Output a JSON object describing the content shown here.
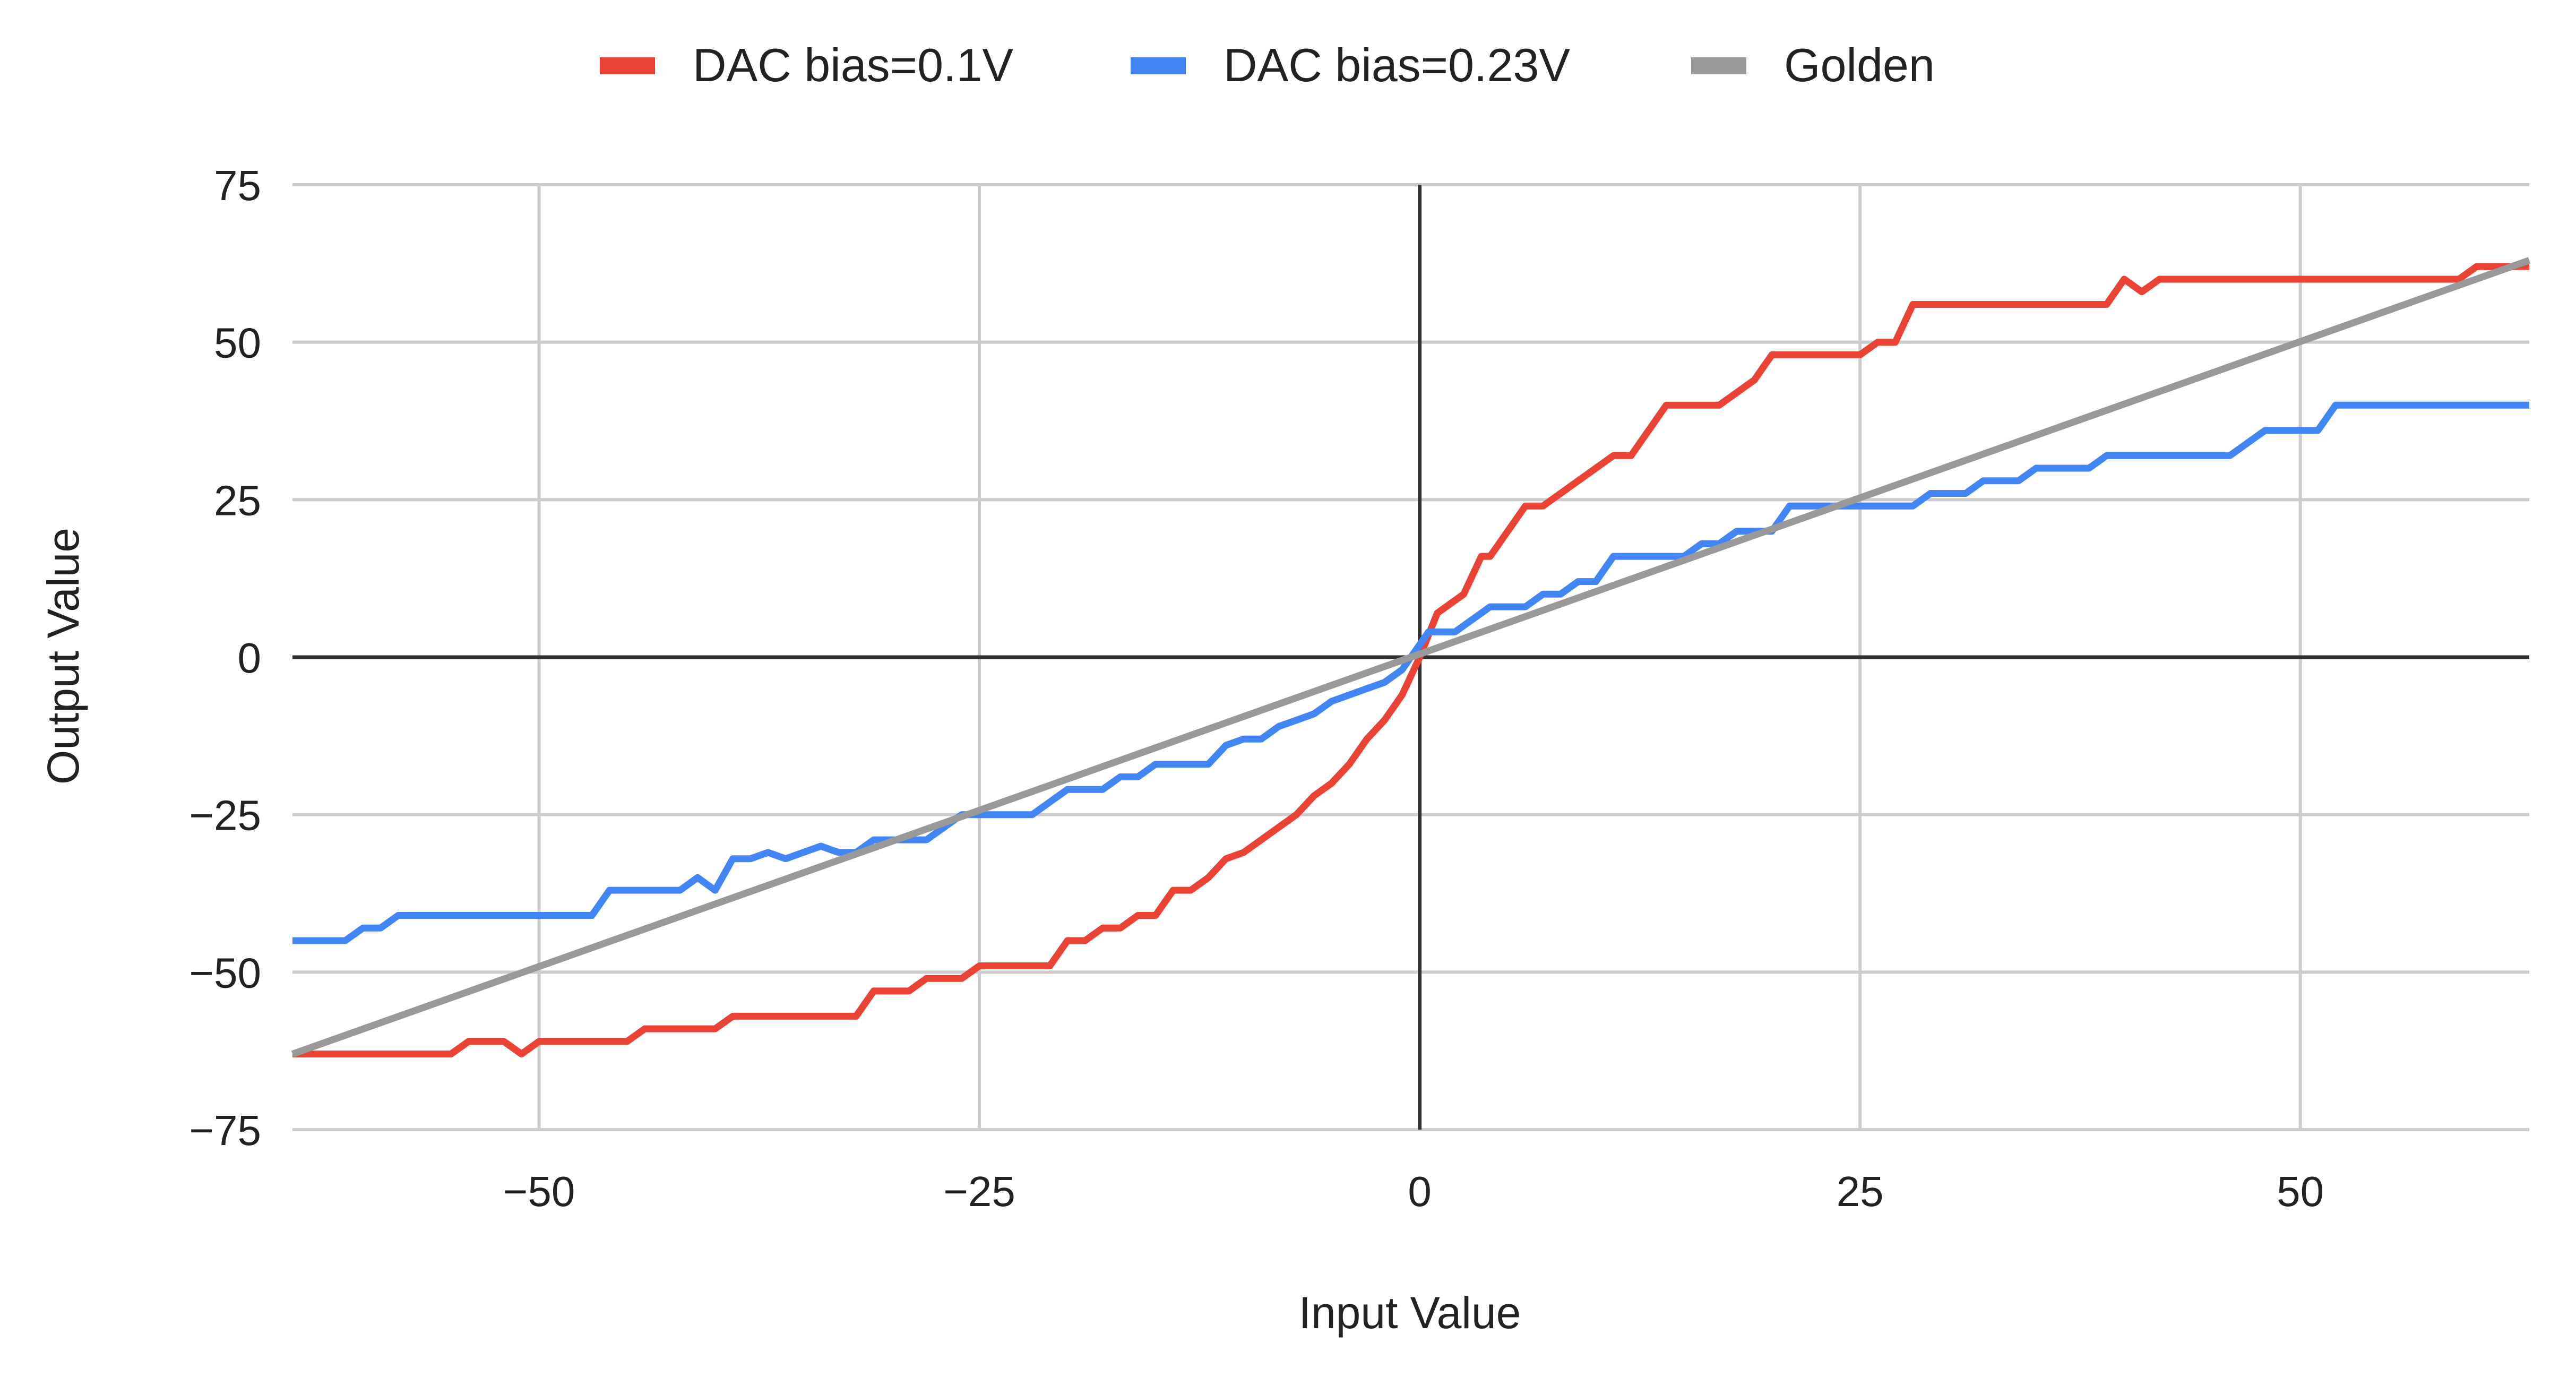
{
  "chart_data": {
    "type": "line",
    "title": "",
    "xlabel": "Input Value",
    "ylabel": "Output Value",
    "xlim": [
      -64,
      63
    ],
    "ylim": [
      -75,
      75
    ],
    "xticks": [
      -50,
      -25,
      0,
      25,
      50
    ],
    "yticks": [
      -75,
      -50,
      -25,
      0,
      25,
      50,
      75
    ],
    "xtick_labels": [
      "−50",
      "−25",
      "0",
      "25",
      "50"
    ],
    "ytick_labels": [
      "−75",
      "−50",
      "−25",
      "0",
      "25",
      "50",
      "75"
    ],
    "grid": true,
    "legend_position": "top-center",
    "series": [
      {
        "name": "DAC bias=0.1V",
        "color": "#ea4335",
        "points": [
          [
            -64,
            -63
          ],
          [
            -55,
            -63
          ],
          [
            -54,
            -61
          ],
          [
            -52,
            -61
          ],
          [
            -51,
            -63
          ],
          [
            -50,
            -61
          ],
          [
            -45,
            -61
          ],
          [
            -44,
            -59
          ],
          [
            -40,
            -59
          ],
          [
            -39,
            -57
          ],
          [
            -32,
            -57
          ],
          [
            -31,
            -53
          ],
          [
            -29,
            -53
          ],
          [
            -28,
            -51
          ],
          [
            -26,
            -51
          ],
          [
            -25,
            -49
          ],
          [
            -21,
            -49
          ],
          [
            -20,
            -45
          ],
          [
            -19,
            -45
          ],
          [
            -18,
            -43
          ],
          [
            -17,
            -43
          ],
          [
            -16,
            -41
          ],
          [
            -15,
            -41
          ],
          [
            -14,
            -37
          ],
          [
            -13,
            -37
          ],
          [
            -12,
            -35
          ],
          [
            -11,
            -32
          ],
          [
            -10,
            -31
          ],
          [
            -9,
            -29
          ],
          [
            -8,
            -27
          ],
          [
            -7,
            -25
          ],
          [
            -6,
            -22
          ],
          [
            -5,
            -20
          ],
          [
            -4,
            -17
          ],
          [
            -3,
            -13
          ],
          [
            -2,
            -10
          ],
          [
            -1,
            -6
          ],
          [
            0,
            0
          ],
          [
            1,
            7
          ],
          [
            2,
            9
          ],
          [
            2.5,
            10
          ],
          [
            3,
            13
          ],
          [
            3.5,
            16
          ],
          [
            4,
            16
          ],
          [
            5,
            20
          ],
          [
            6,
            24
          ],
          [
            7,
            24
          ],
          [
            8,
            26
          ],
          [
            9,
            28
          ],
          [
            10,
            30
          ],
          [
            11,
            32
          ],
          [
            12,
            32
          ],
          [
            14,
            40
          ],
          [
            17,
            40
          ],
          [
            19,
            44
          ],
          [
            20,
            48
          ],
          [
            25,
            48
          ],
          [
            26,
            50
          ],
          [
            27,
            50
          ],
          [
            28,
            56
          ],
          [
            39,
            56
          ],
          [
            40,
            60
          ],
          [
            41,
            58
          ],
          [
            42,
            60
          ],
          [
            59,
            60
          ],
          [
            60,
            62
          ],
          [
            63,
            62
          ]
        ]
      },
      {
        "name": "DAC bias=0.23V",
        "color": "#4285f4",
        "points": [
          [
            -64,
            -45
          ],
          [
            -61,
            -45
          ],
          [
            -60,
            -43
          ],
          [
            -59,
            -43
          ],
          [
            -58,
            -41
          ],
          [
            -47,
            -41
          ],
          [
            -46,
            -37
          ],
          [
            -42,
            -37
          ],
          [
            -41,
            -35
          ],
          [
            -40,
            -37
          ],
          [
            -39,
            -32
          ],
          [
            -38,
            -32
          ],
          [
            -37,
            -31
          ],
          [
            -36,
            -32
          ],
          [
            -34,
            -30
          ],
          [
            -33,
            -31
          ],
          [
            -32,
            -31
          ],
          [
            -31,
            -29
          ],
          [
            -29,
            -29
          ],
          [
            -28,
            -29
          ],
          [
            -27,
            -27
          ],
          [
            -26,
            -25
          ],
          [
            -22,
            -25
          ],
          [
            -21,
            -23
          ],
          [
            -20,
            -21
          ],
          [
            -18,
            -21
          ],
          [
            -17,
            -19
          ],
          [
            -16,
            -19
          ],
          [
            -15,
            -17
          ],
          [
            -12,
            -17
          ],
          [
            -11,
            -14
          ],
          [
            -10,
            -13
          ],
          [
            -9,
            -13
          ],
          [
            -8,
            -11
          ],
          [
            -7,
            -10
          ],
          [
            -6,
            -9
          ],
          [
            -5,
            -7
          ],
          [
            -3,
            -5
          ],
          [
            -2,
            -4
          ],
          [
            -1,
            -2
          ],
          [
            0,
            2
          ],
          [
            0.5,
            4
          ],
          [
            2,
            4
          ],
          [
            3,
            6
          ],
          [
            4,
            8
          ],
          [
            6,
            8
          ],
          [
            7,
            10
          ],
          [
            8,
            10
          ],
          [
            9,
            12
          ],
          [
            10,
            12
          ],
          [
            11,
            16
          ],
          [
            15,
            16
          ],
          [
            16,
            18
          ],
          [
            17,
            18
          ],
          [
            18,
            20
          ],
          [
            20,
            20
          ],
          [
            21,
            24
          ],
          [
            28,
            24
          ],
          [
            29,
            26
          ],
          [
            31,
            26
          ],
          [
            32,
            28
          ],
          [
            34,
            28
          ],
          [
            35,
            30
          ],
          [
            38,
            30
          ],
          [
            39,
            32
          ],
          [
            46,
            32
          ],
          [
            48,
            36
          ],
          [
            51,
            36
          ],
          [
            52,
            40
          ],
          [
            63,
            40
          ]
        ]
      },
      {
        "name": "Golden",
        "color": "#999999",
        "points": [
          [
            -64,
            -63
          ],
          [
            63,
            63
          ]
        ]
      }
    ]
  }
}
